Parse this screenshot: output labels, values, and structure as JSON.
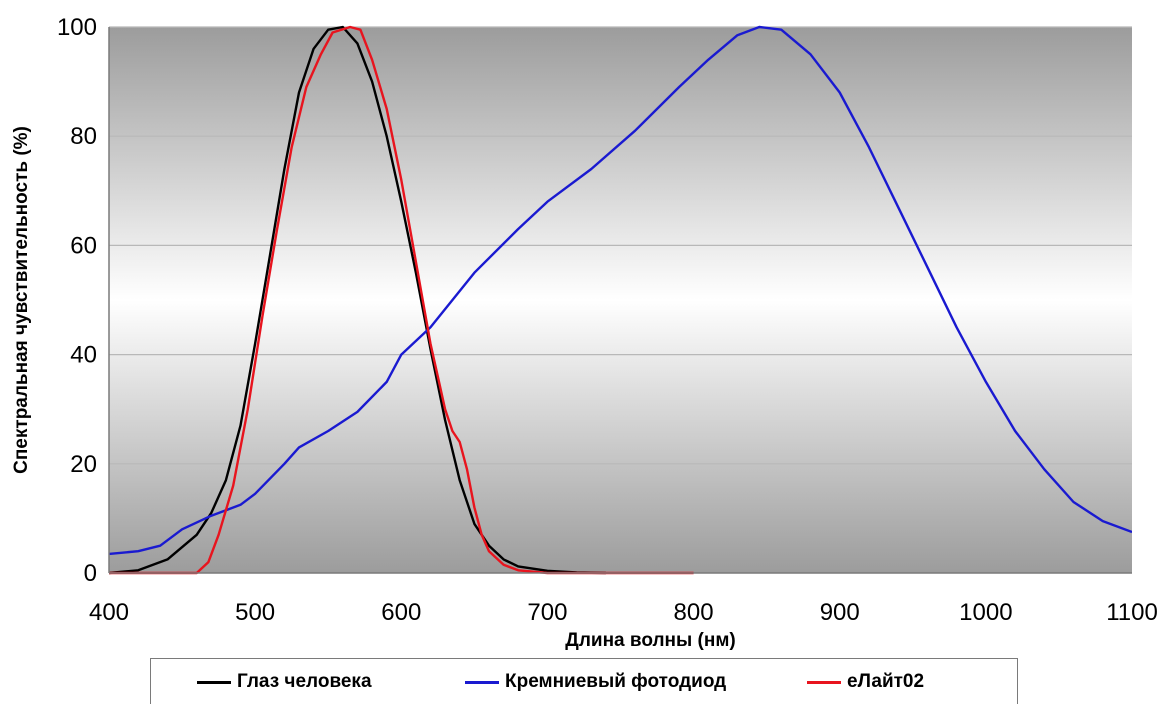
{
  "chart_data": {
    "type": "line",
    "title": "",
    "xlabel": "Длина волны (нм)",
    "ylabel": "Спектральная чувствительность (%)",
    "xlim": [
      400,
      1100
    ],
    "ylim": [
      0,
      100
    ],
    "x_ticks": [
      "400",
      "500",
      "600",
      "700",
      "800",
      "900",
      "1000",
      "1100"
    ],
    "y_ticks": [
      "0",
      "20",
      "40",
      "60",
      "80",
      "100"
    ],
    "grid": "horizontal",
    "legend_position": "bottom",
    "series": [
      {
        "name": "Глаз человека",
        "color": "#000000",
        "points": [
          [
            400,
            0
          ],
          [
            420,
            0.5
          ],
          [
            440,
            2.5
          ],
          [
            460,
            7
          ],
          [
            470,
            11
          ],
          [
            480,
            17
          ],
          [
            490,
            27
          ],
          [
            500,
            42
          ],
          [
            510,
            58
          ],
          [
            520,
            74
          ],
          [
            530,
            88
          ],
          [
            540,
            96
          ],
          [
            550,
            99.5
          ],
          [
            560,
            100
          ],
          [
            570,
            97
          ],
          [
            580,
            90
          ],
          [
            590,
            80
          ],
          [
            600,
            68
          ],
          [
            610,
            55
          ],
          [
            620,
            41
          ],
          [
            630,
            28
          ],
          [
            640,
            17
          ],
          [
            650,
            9
          ],
          [
            660,
            5
          ],
          [
            670,
            2.5
          ],
          [
            680,
            1.2
          ],
          [
            700,
            0.4
          ],
          [
            720,
            0.1
          ],
          [
            740,
            0
          ]
        ]
      },
      {
        "name": "Кремниевый фотодиод",
        "color": "#1a1ad0",
        "points": [
          [
            400,
            3.5
          ],
          [
            420,
            4
          ],
          [
            435,
            5
          ],
          [
            450,
            8
          ],
          [
            470,
            10.5
          ],
          [
            490,
            12.5
          ],
          [
            500,
            14.5
          ],
          [
            520,
            20
          ],
          [
            530,
            23
          ],
          [
            550,
            26
          ],
          [
            570,
            29.5
          ],
          [
            590,
            35
          ],
          [
            600,
            40
          ],
          [
            620,
            45
          ],
          [
            650,
            55
          ],
          [
            680,
            63
          ],
          [
            700,
            68
          ],
          [
            730,
            74
          ],
          [
            760,
            81
          ],
          [
            790,
            89
          ],
          [
            810,
            94
          ],
          [
            830,
            98.5
          ],
          [
            845,
            100
          ],
          [
            860,
            99.5
          ],
          [
            880,
            95
          ],
          [
            900,
            88
          ],
          [
            920,
            78
          ],
          [
            940,
            67
          ],
          [
            960,
            56
          ],
          [
            980,
            45
          ],
          [
            1000,
            35
          ],
          [
            1020,
            26
          ],
          [
            1040,
            19
          ],
          [
            1060,
            13
          ],
          [
            1080,
            9.5
          ],
          [
            1100,
            7.5
          ]
        ]
      },
      {
        "name": "еЛайт02",
        "color": "#e8141e",
        "points": [
          [
            400,
            0
          ],
          [
            460,
            0
          ],
          [
            468,
            2
          ],
          [
            475,
            7
          ],
          [
            485,
            16
          ],
          [
            495,
            30
          ],
          [
            505,
            47
          ],
          [
            515,
            63
          ],
          [
            525,
            78
          ],
          [
            535,
            89
          ],
          [
            545,
            95
          ],
          [
            553,
            99
          ],
          [
            565,
            100
          ],
          [
            572,
            99.5
          ],
          [
            580,
            94
          ],
          [
            590,
            85
          ],
          [
            600,
            72
          ],
          [
            610,
            57
          ],
          [
            620,
            42
          ],
          [
            630,
            30
          ],
          [
            635,
            26
          ],
          [
            640,
            24
          ],
          [
            645,
            19
          ],
          [
            650,
            12
          ],
          [
            655,
            7
          ],
          [
            660,
            4
          ],
          [
            670,
            1.5
          ],
          [
            680,
            0.5
          ],
          [
            700,
            0
          ],
          [
            800,
            0
          ]
        ]
      }
    ]
  }
}
